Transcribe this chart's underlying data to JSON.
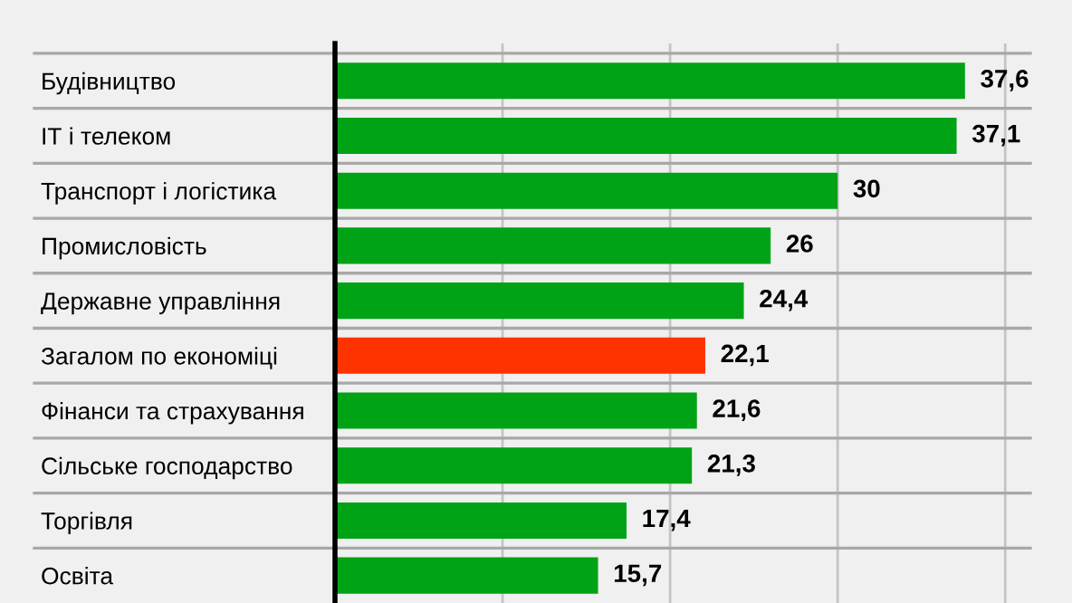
{
  "chart_data": {
    "type": "bar",
    "orientation": "horizontal",
    "categories": [
      "Будівництво",
      "ІТ і телеком",
      "Транспорт і логістика",
      "Промисловість",
      "Державне управління",
      "Загалом по економіці",
      "Фінанси та страхування",
      "Сільське господарство",
      "Торгівля",
      "Освіта"
    ],
    "values": [
      37.6,
      37.1,
      30,
      26,
      24.4,
      22.1,
      21.6,
      21.3,
      17.4,
      15.7
    ],
    "colors": [
      "#00a316",
      "#00a316",
      "#00a316",
      "#00a316",
      "#00a316",
      "#ff3300",
      "#00a316",
      "#00a316",
      "#00a316",
      "#00a316"
    ],
    "value_labels": [
      "37,6",
      "37,1",
      "30",
      "26",
      "24,4",
      "22,1",
      "21,6",
      "21,3",
      "17,4",
      "15,7"
    ],
    "xlim": [
      0,
      41.5
    ],
    "xticks": [
      {
        "value": 10,
        "label": null
      },
      {
        "value": 20,
        "label": null
      },
      {
        "value": 30,
        "label": null
      },
      {
        "value": 40,
        "label": null
      }
    ],
    "grid": "x",
    "tick_labels": "y",
    "legend": false
  }
}
